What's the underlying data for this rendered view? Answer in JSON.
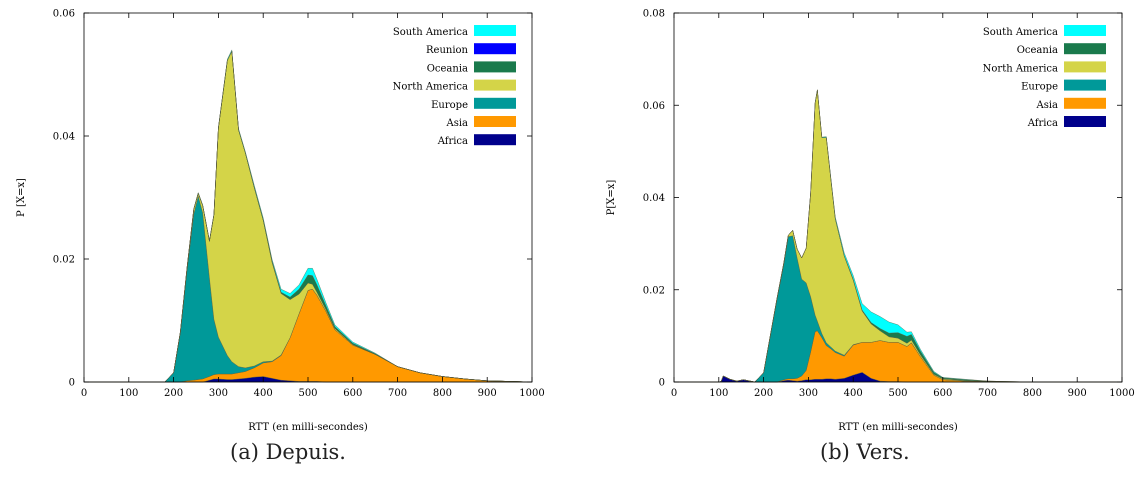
{
  "captions": {
    "a": "(a) Depuis.",
    "b": "(b) Vers."
  },
  "chart_data": [
    {
      "type": "area",
      "stacked": true,
      "xlabel": "RTT (en milli-secondes)",
      "ylabel": "P [X=x]",
      "xlim": [
        0,
        1000
      ],
      "ylim": [
        0,
        0.06
      ],
      "xticks": [
        0,
        100,
        200,
        300,
        400,
        500,
        600,
        700,
        800,
        900,
        1000
      ],
      "yticks": [
        0,
        0.02,
        0.04,
        0.06
      ],
      "ytick_labels": [
        "0",
        "0.02",
        "0.04",
        "0.06"
      ],
      "grid": false,
      "legend_position": "top-right",
      "x": [
        0,
        100,
        180,
        200,
        215,
        230,
        245,
        255,
        265,
        280,
        290,
        300,
        320,
        330,
        345,
        360,
        380,
        400,
        420,
        440,
        460,
        480,
        500,
        510,
        520,
        540,
        560,
        600,
        650,
        700,
        750,
        800,
        850,
        900,
        950,
        1000
      ],
      "series": [
        {
          "name": "Africa",
          "color": "#00008b",
          "values": [
            0,
            0,
            0,
            0,
            0,
            0,
            0,
            0,
            0,
            0.0003,
            0.0005,
            0.0005,
            0.0004,
            0.0004,
            0.0005,
            0.0006,
            0.0008,
            0.0009,
            0.0006,
            0.0003,
            0.0002,
            0.0001,
            0.0001,
            0.0001,
            0.0001,
            0,
            0,
            0,
            0,
            0,
            0,
            0,
            0,
            0,
            0,
            0
          ]
        },
        {
          "name": "Asia",
          "color": "#ff9900",
          "values": [
            0,
            0,
            0,
            0,
            0,
            0.0002,
            0.0003,
            0.0004,
            0.0005,
            0.0006,
            0.0007,
            0.0008,
            0.0009,
            0.0009,
            0.001,
            0.0011,
            0.0015,
            0.0022,
            0.0027,
            0.004,
            0.007,
            0.011,
            0.0148,
            0.015,
            0.014,
            0.0115,
            0.0085,
            0.006,
            0.0045,
            0.0025,
            0.0015,
            0.0009,
            0.0005,
            0.0002,
            0.0001,
            0
          ]
        },
        {
          "name": "Europe",
          "color": "#009999",
          "values": [
            0,
            0,
            0,
            0.0015,
            0.008,
            0.018,
            0.027,
            0.0298,
            0.027,
            0.016,
            0.009,
            0.006,
            0.003,
            0.002,
            0.001,
            0.0006,
            0.0003,
            0.0002,
            0.0001,
            0.0001,
            0,
            0,
            0,
            0,
            0,
            0,
            0,
            0,
            0,
            0,
            0,
            0,
            0,
            0,
            0,
            0
          ]
        },
        {
          "name": "North America",
          "color": "#d4d448",
          "values": [
            0,
            0,
            0,
            0,
            0.0001,
            0.0004,
            0.0008,
            0.0005,
            0.0012,
            0.006,
            0.017,
            0.034,
            0.048,
            0.0505,
            0.0385,
            0.035,
            0.029,
            0.023,
            0.016,
            0.01,
            0.0062,
            0.0032,
            0.0012,
            0.0008,
            0.0005,
            0.0003,
            0.0002,
            0.0001,
            0,
            0,
            0,
            0,
            0,
            0,
            0,
            0
          ]
        },
        {
          "name": "Oceania",
          "color": "#1a7a4c",
          "values": [
            0,
            0,
            0,
            0,
            0,
            0,
            0,
            0,
            0,
            0,
            0,
            0,
            0,
            0,
            0,
            0,
            0.0001,
            0.0001,
            0.0002,
            0.0002,
            0.0004,
            0.0008,
            0.0013,
            0.0014,
            0.0012,
            0.0006,
            0.0003,
            0.0002,
            0.0001,
            0,
            0,
            0,
            0,
            0,
            0,
            0
          ]
        },
        {
          "name": "Reunion",
          "color": "#0000ff",
          "values": [
            0,
            0,
            0,
            0,
            0,
            0,
            0,
            0,
            0,
            0,
            0,
            0,
            0,
            0,
            0,
            0,
            0,
            0,
            0,
            0,
            0,
            0,
            0,
            0,
            0,
            0,
            0,
            0,
            0,
            0,
            0,
            0,
            0,
            0,
            0,
            0
          ]
        },
        {
          "name": "South America",
          "color": "#00ffff",
          "values": [
            0,
            0,
            0,
            0,
            0,
            0,
            0.0001,
            0.0001,
            0.0001,
            0.0001,
            0.0001,
            0.0001,
            0.0002,
            0.0002,
            0.0002,
            0.0002,
            0.0003,
            0.0003,
            0.0003,
            0.0005,
            0.0006,
            0.0007,
            0.0011,
            0.0012,
            0.0009,
            0.0005,
            0.0003,
            0.0002,
            0.0001,
            0,
            0,
            0,
            0,
            0,
            0,
            0
          ]
        }
      ],
      "legend_order": [
        "South America",
        "Reunion",
        "Oceania",
        "North America",
        "Europe",
        "Asia",
        "Africa"
      ]
    },
    {
      "type": "area",
      "stacked": true,
      "xlabel": "RTT (en milli-secondes)",
      "ylabel": "P[X=x]",
      "xlim": [
        0,
        1000
      ],
      "ylim": [
        0,
        0.08
      ],
      "xticks": [
        0,
        100,
        200,
        300,
        400,
        500,
        600,
        700,
        800,
        900,
        1000
      ],
      "yticks": [
        0,
        0.02,
        0.04,
        0.06,
        0.08
      ],
      "ytick_labels": [
        "0",
        "0.02",
        "0.04",
        "0.06",
        "0.08"
      ],
      "grid": false,
      "legend_position": "top-right",
      "x": [
        0,
        100,
        105,
        110,
        125,
        140,
        155,
        180,
        200,
        215,
        230,
        245,
        255,
        265,
        275,
        285,
        295,
        305,
        315,
        320,
        330,
        340,
        350,
        360,
        380,
        400,
        420,
        440,
        460,
        480,
        500,
        520,
        530,
        550,
        580,
        600,
        650,
        700,
        750,
        800,
        900,
        1000
      ],
      "series": [
        {
          "name": "Africa",
          "color": "#00008b",
          "values": [
            0,
            0,
            0.0001,
            0.0013,
            0.0006,
            0.0002,
            0.0005,
            0,
            0,
            0,
            0,
            0.0003,
            0.0004,
            0.0003,
            0.0002,
            0.0003,
            0.0005,
            0.0005,
            0.0006,
            0.0006,
            0.0006,
            0.0007,
            0.0007,
            0.0006,
            0.0008,
            0.0015,
            0.0021,
            0.0008,
            0.0002,
            0.0001,
            0.0001,
            0,
            0,
            0,
            0,
            0,
            0,
            0,
            0,
            0,
            0,
            0
          ]
        },
        {
          "name": "Asia",
          "color": "#ff9900",
          "values": [
            0,
            0,
            0,
            0,
            0,
            0,
            0,
            0,
            0,
            0,
            0,
            0.0002,
            0.0003,
            0.0004,
            0.0006,
            0.001,
            0.002,
            0.006,
            0.0103,
            0.0105,
            0.009,
            0.0072,
            0.0065,
            0.0058,
            0.0048,
            0.0065,
            0.0065,
            0.0078,
            0.0088,
            0.0085,
            0.0085,
            0.0077,
            0.0085,
            0.0055,
            0.0015,
            0.0005,
            0.0002,
            0.0001,
            0,
            0,
            0,
            0
          ]
        },
        {
          "name": "Europe",
          "color": "#009999",
          "values": [
            0,
            0,
            0,
            0,
            0,
            0,
            0,
            0,
            0.002,
            0.01,
            0.018,
            0.025,
            0.0308,
            0.031,
            0.026,
            0.021,
            0.019,
            0.012,
            0.0036,
            0.0021,
            0.0009,
            0.0006,
            0.0004,
            0.0003,
            0.0002,
            0.0001,
            0,
            0,
            0,
            0,
            0,
            0,
            0,
            0,
            0,
            0,
            0,
            0,
            0,
            0,
            0,
            0
          ]
        },
        {
          "name": "North America",
          "color": "#d4d448",
          "values": [
            0,
            0,
            0,
            0,
            0,
            0,
            0,
            0,
            0,
            0.0001,
            0.0002,
            0.0003,
            0.0003,
            0.0012,
            0.002,
            0.0046,
            0.0075,
            0.0225,
            0.046,
            0.0501,
            0.0425,
            0.0445,
            0.0365,
            0.0287,
            0.0215,
            0.014,
            0.0068,
            0.004,
            0.0021,
            0.0012,
            0.0009,
            0.0007,
            0.0006,
            0.0004,
            0.0002,
            0.0002,
            0.0001,
            0,
            0,
            0,
            0,
            0
          ]
        },
        {
          "name": "Oceania",
          "color": "#1a7a4c",
          "values": [
            0,
            0,
            0,
            0,
            0,
            0,
            0,
            0,
            0,
            0,
            0,
            0,
            0,
            0,
            0,
            0,
            0,
            0,
            0,
            0,
            0,
            0,
            0,
            0,
            0.0001,
            0.0002,
            0.0002,
            0.0003,
            0.0005,
            0.0008,
            0.0012,
            0.0015,
            0.0012,
            0.0008,
            0.0004,
            0.0002,
            0.0002,
            0.0001,
            0.0001,
            0,
            0,
            0
          ]
        },
        {
          "name": "South America",
          "color": "#00ffff",
          "values": [
            0,
            0,
            0,
            0,
            0,
            0,
            0,
            0,
            0,
            0,
            0,
            0,
            0,
            0,
            0,
            0,
            0,
            0,
            0.0001,
            0.0001,
            0.0001,
            0.0002,
            0.0003,
            0.0004,
            0.0006,
            0.0008,
            0.0014,
            0.0023,
            0.0026,
            0.0024,
            0.0017,
            0.0009,
            0.0006,
            0.0004,
            0.0002,
            0.0001,
            0.0001,
            0,
            0,
            0,
            0,
            0
          ]
        }
      ],
      "legend_order": [
        "South America",
        "Oceania",
        "North America",
        "Europe",
        "Asia",
        "Africa"
      ]
    }
  ]
}
